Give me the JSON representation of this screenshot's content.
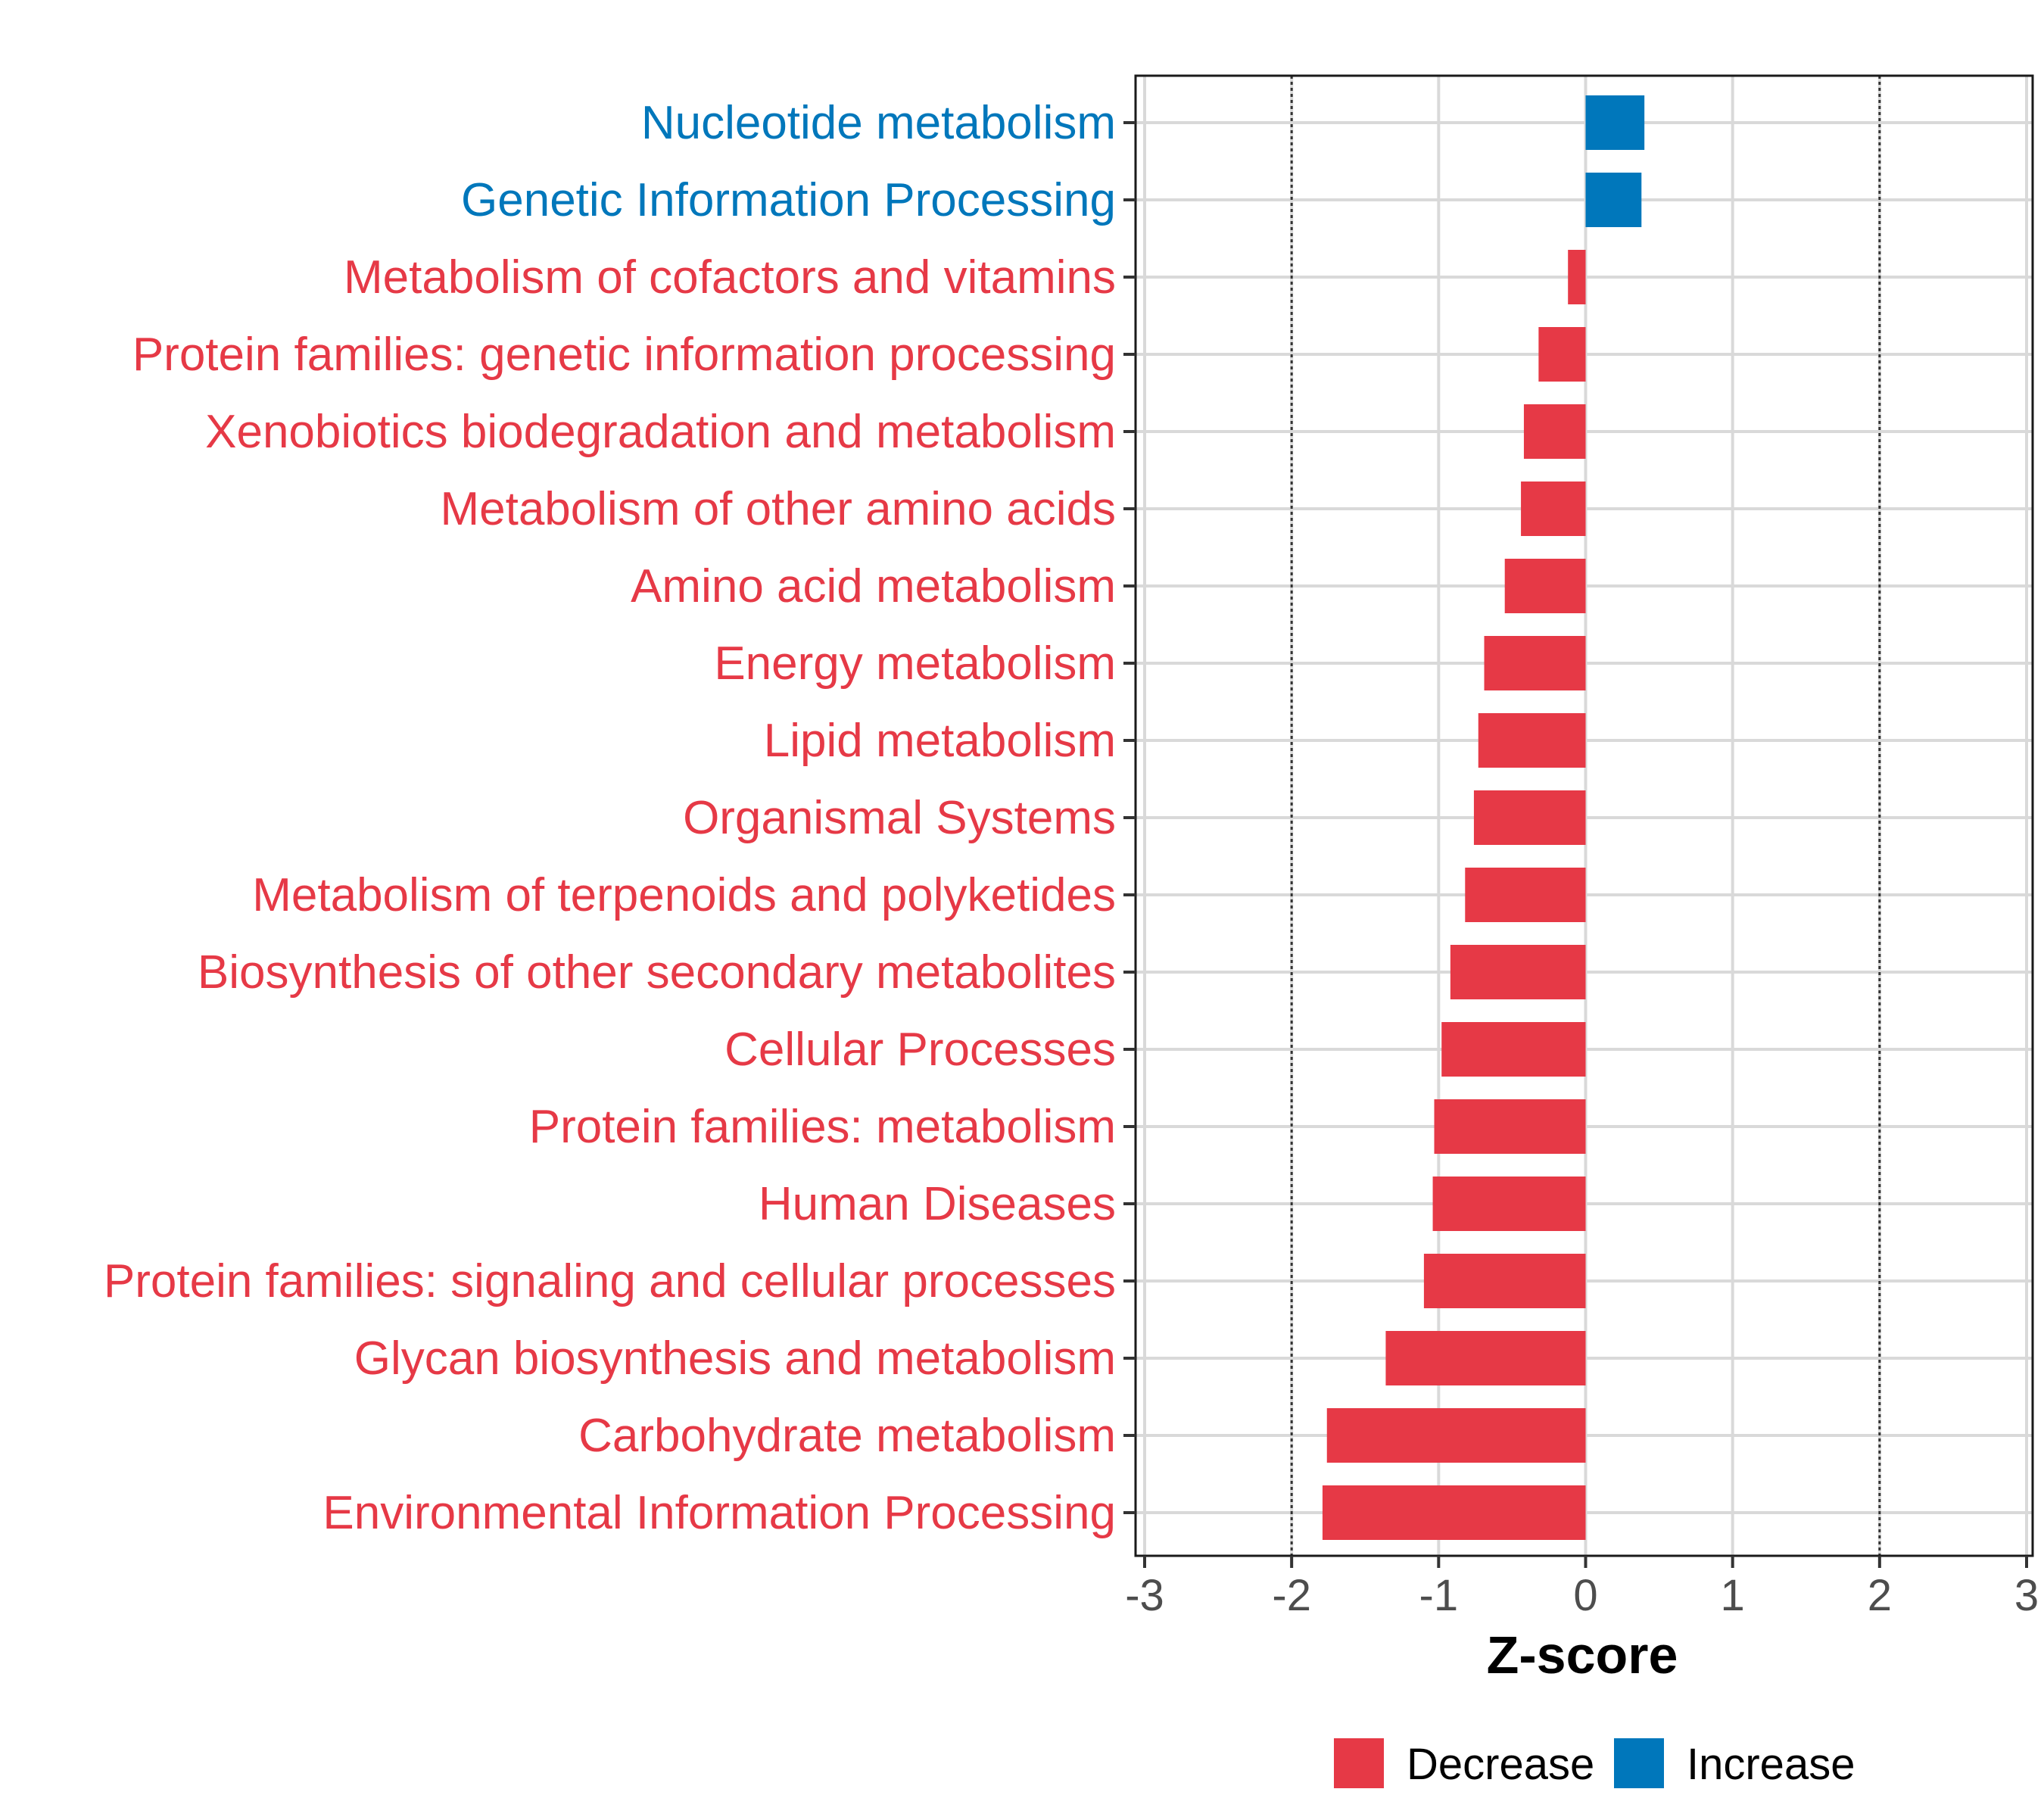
{
  "chart_data": {
    "type": "bar",
    "orientation": "horizontal",
    "title": "",
    "xlabel": "Z-score",
    "ylabel": "",
    "xlim": [
      -3,
      3
    ],
    "xticks": [
      -3,
      -2,
      -1,
      0,
      1,
      2,
      3
    ],
    "xtick_labels": [
      "-3",
      "-2",
      "-1",
      "0",
      "1",
      "2",
      "3"
    ],
    "reference_lines": [
      -2,
      2
    ],
    "grid": true,
    "colors": {
      "Decrease": "#e63946",
      "Increase": "#0077bb"
    },
    "legend": {
      "position": "bottom",
      "entries": [
        {
          "label": "Decrease",
          "color": "#e63946"
        },
        {
          "label": "Increase",
          "color": "#0077bb"
        }
      ]
    },
    "bars": [
      {
        "category": "Nucleotide metabolism",
        "value": 0.4,
        "group": "Increase"
      },
      {
        "category": "Genetic Information Processing",
        "value": 0.38,
        "group": "Increase"
      },
      {
        "category": "Metabolism of cofactors and vitamins",
        "value": -0.12,
        "group": "Decrease"
      },
      {
        "category": "Protein families: genetic information processing",
        "value": -0.32,
        "group": "Decrease"
      },
      {
        "category": "Xenobiotics biodegradation and metabolism",
        "value": -0.42,
        "group": "Decrease"
      },
      {
        "category": "Metabolism of other amino acids",
        "value": -0.44,
        "group": "Decrease"
      },
      {
        "category": "Amino acid metabolism",
        "value": -0.55,
        "group": "Decrease"
      },
      {
        "category": "Energy metabolism",
        "value": -0.69,
        "group": "Decrease"
      },
      {
        "category": "Lipid metabolism",
        "value": -0.73,
        "group": "Decrease"
      },
      {
        "category": "Organismal Systems",
        "value": -0.76,
        "group": "Decrease"
      },
      {
        "category": "Metabolism of terpenoids and polyketides",
        "value": -0.82,
        "group": "Decrease"
      },
      {
        "category": "Biosynthesis of other secondary metabolites",
        "value": -0.92,
        "group": "Decrease"
      },
      {
        "category": "Cellular Processes",
        "value": -0.98,
        "group": "Decrease"
      },
      {
        "category": "Protein families: metabolism",
        "value": -1.03,
        "group": "Decrease"
      },
      {
        "category": "Human Diseases",
        "value": -1.04,
        "group": "Decrease"
      },
      {
        "category": "Protein families: signaling and cellular processes",
        "value": -1.1,
        "group": "Decrease"
      },
      {
        "category": "Glycan biosynthesis and metabolism",
        "value": -1.36,
        "group": "Decrease"
      },
      {
        "category": "Carbohydrate metabolism",
        "value": -1.76,
        "group": "Decrease"
      },
      {
        "category": "Environmental Information Processing",
        "value": -1.79,
        "group": "Decrease"
      }
    ]
  }
}
